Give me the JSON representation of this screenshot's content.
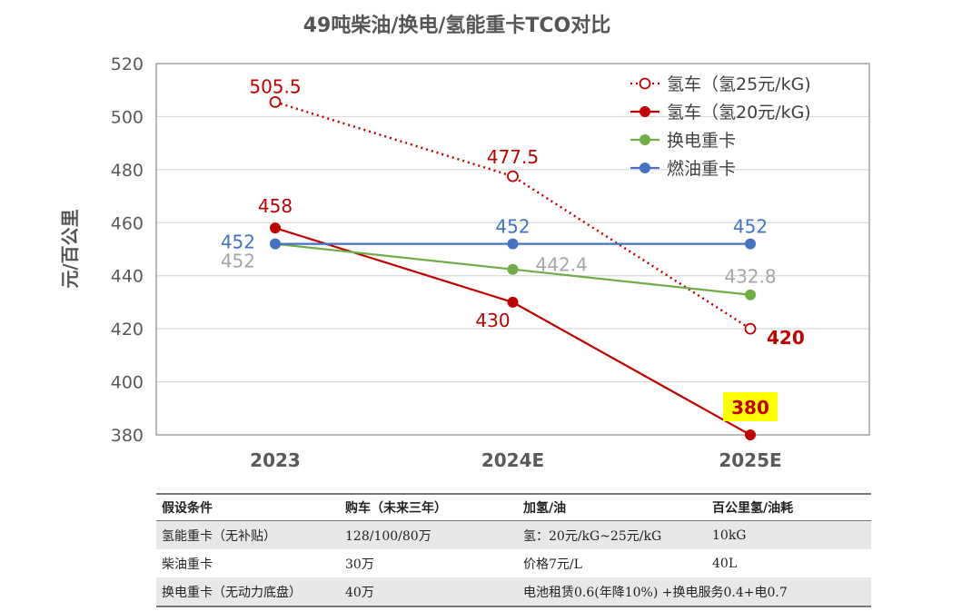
{
  "chart_data": {
    "type": "line",
    "title": "49吨柴油/换电/氢能重卡TCO对比",
    "ylabel": "元/百公里",
    "xlabel": "",
    "categories": [
      "2023",
      "2024E",
      "2025E"
    ],
    "ylim": [
      380,
      520
    ],
    "yticks": [
      380,
      400,
      420,
      440,
      460,
      480,
      500,
      520
    ],
    "grid": true,
    "legend_position": "top-right",
    "series": [
      {
        "name": "氢车（氢25元/kG)",
        "values": [
          505.5,
          477.5,
          420
        ],
        "color": "#c00000",
        "style": "dotted",
        "marker": "hollow-circle",
        "labels": [
          "505.5",
          "477.5",
          "420"
        ]
      },
      {
        "name": "氢车（氢20元/kG)",
        "values": [
          458,
          430,
          380
        ],
        "color": "#c00000",
        "style": "solid",
        "marker": "filled-circle",
        "labels": [
          "458",
          "430",
          "380"
        ]
      },
      {
        "name": "换电重卡",
        "values": [
          452,
          442.4,
          432.8
        ],
        "color": "#70ad47",
        "style": "solid",
        "marker": "filled-circle",
        "labels": [
          "452",
          "442.4",
          "432.8"
        ]
      },
      {
        "name": "燃油重卡",
        "values": [
          452,
          452,
          452
        ],
        "color": "#4472c4",
        "style": "solid",
        "marker": "filled-circle",
        "labels": [
          "452",
          "452",
          "452"
        ]
      }
    ],
    "label_colors": {
      "换电重卡": "#a6a6a6"
    },
    "highlight": {
      "value": "380",
      "background": "#ffff00"
    }
  },
  "table": {
    "headers": [
      "假设条件",
      "购车（未来三年）",
      "加氢/油",
      "百公里氢/油耗"
    ],
    "rows": [
      [
        "氢能重卡（无补贴）",
        "128/100/80万",
        "氢：20元/kG~25元/kG",
        "10kG"
      ],
      [
        "柴油重卡",
        "30万",
        "价格7元/L",
        "40L"
      ],
      [
        "换电重卡（无动力底盘）",
        "40万",
        "电池租赁0.6(年降10%) +换电服务0.4+电0.7",
        ""
      ]
    ]
  }
}
